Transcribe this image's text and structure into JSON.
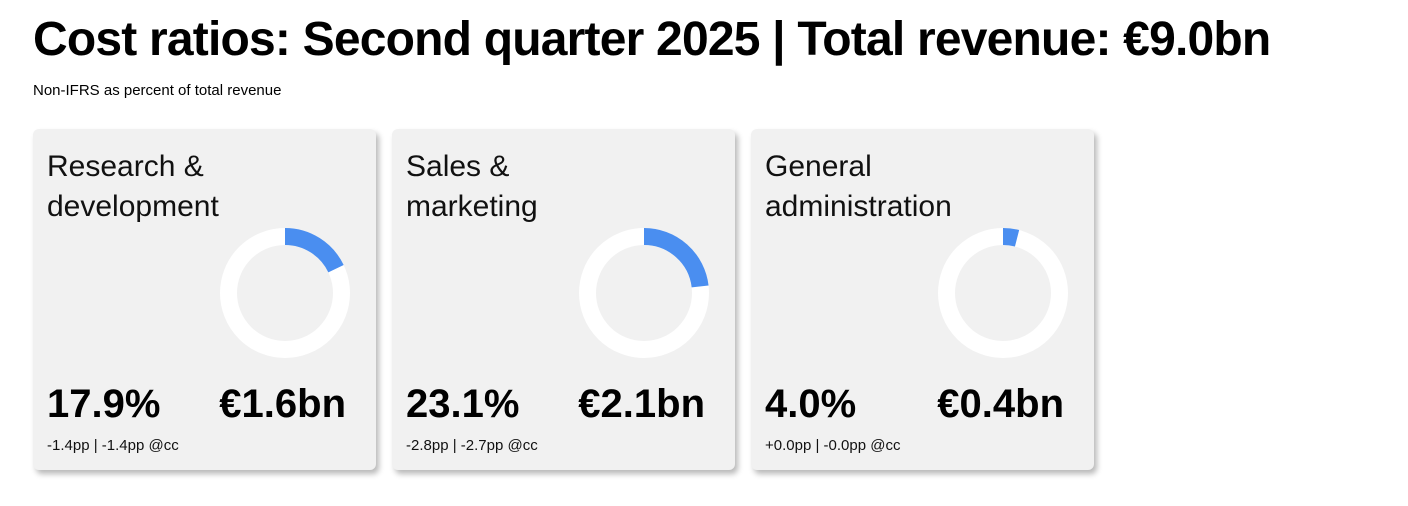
{
  "title": "Cost ratios: Second quarter 2025 | Total revenue: €9.0bn",
  "subtitle": "Non-IFRS as percent of total revenue",
  "colors": {
    "accent": "#4a8ef0",
    "track": "#ffffff",
    "card_bg": "#f1f1f1"
  },
  "cards": [
    {
      "title": "Research & development",
      "percent_label": "17.9%",
      "amount_label": "€1.6bn",
      "change": "-1.4pp | -1.4pp @cc"
    },
    {
      "title": "Sales & marketing",
      "percent_label": "23.1%",
      "amount_label": "€2.1bn",
      "change": "-2.8pp | -2.7pp @cc"
    },
    {
      "title": "General administration",
      "percent_label": "4.0%",
      "amount_label": "€0.4bn",
      "change": "+0.0pp | -0.0pp @cc"
    }
  ],
  "chart_data": {
    "type": "pie",
    "title": "Cost ratios: Second quarter 2025 | Total revenue: €9.0bn",
    "subtitle": "Non-IFRS as percent of total revenue",
    "categories": [
      "Research & development",
      "Sales & marketing",
      "General administration"
    ],
    "values": [
      17.9,
      23.1,
      4.0
    ],
    "unit": "%",
    "max": 100
  }
}
